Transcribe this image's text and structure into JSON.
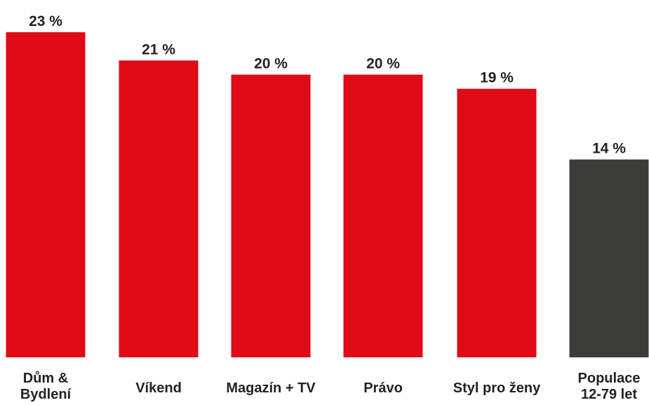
{
  "chart_data": {
    "type": "bar",
    "categories": [
      [
        "Dům &",
        "Bydlení"
      ],
      [
        "Víkend"
      ],
      [
        "Magazín + TV"
      ],
      [
        "Právo"
      ],
      [
        "Styl pro ženy"
      ],
      [
        "Populace",
        "12-79 let"
      ]
    ],
    "values": [
      23,
      21,
      20,
      20,
      19,
      14
    ],
    "value_labels": [
      "23 %",
      "21 %",
      "20 %",
      "20 %",
      "19 %",
      "14 %"
    ],
    "colors": [
      "#e10a17",
      "#e10a17",
      "#e10a17",
      "#e10a17",
      "#e10a17",
      "#3c3c3b"
    ],
    "ylim": [
      0,
      23
    ],
    "grid": false,
    "legend": "none"
  }
}
